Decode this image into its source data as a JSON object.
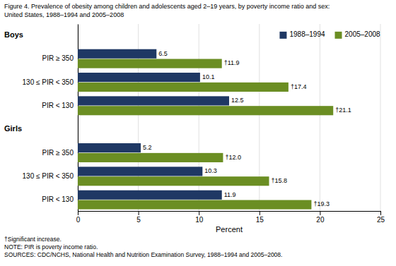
{
  "chart_data": {
    "type": "bar",
    "orientation": "horizontal",
    "title": "Figure 4. Prevalence of obesity among children and adolescents aged 2–19 years, by poverty income ratio and sex:",
    "subtitle": "United States, 1988–1994 and 2005–2008",
    "categories": [
      "PIR ≥ 350",
      "130 ≤ PIR < 350",
      "PIR < 130",
      "PIR ≥ 350",
      "130 ≤ PIR < 350",
      "PIR < 130"
    ],
    "annotations": [
      "Boys",
      "Girls"
    ],
    "series": [
      {
        "name": "1988–1994",
        "color": "#1F3864",
        "values": [
          6.5,
          10.1,
          12.5,
          5.2,
          10.3,
          11.9
        ]
      },
      {
        "name": "2005–2008",
        "color": "#6B8E23",
        "values": [
          11.9,
          17.4,
          21.1,
          12.0,
          15.8,
          19.3
        ],
        "value_labels": [
          "†11.9",
          "†17.4",
          "†21.1",
          "†12.0",
          "†15.8",
          "†19.3"
        ]
      }
    ],
    "data_labels": true,
    "xlabel": "Percent",
    "xlim": [
      0,
      25
    ],
    "xticks": [
      0,
      5,
      10,
      15,
      20,
      25
    ],
    "grid": true,
    "legend": "upper right",
    "footnotes": [
      "†Significant increase.",
      "NOTE: PIR is poverty income ratio.",
      "SOURCES: CDC/NCHS, National Health and Nutrition Examination Survey, 1988–1994 and 2005–2008."
    ]
  }
}
